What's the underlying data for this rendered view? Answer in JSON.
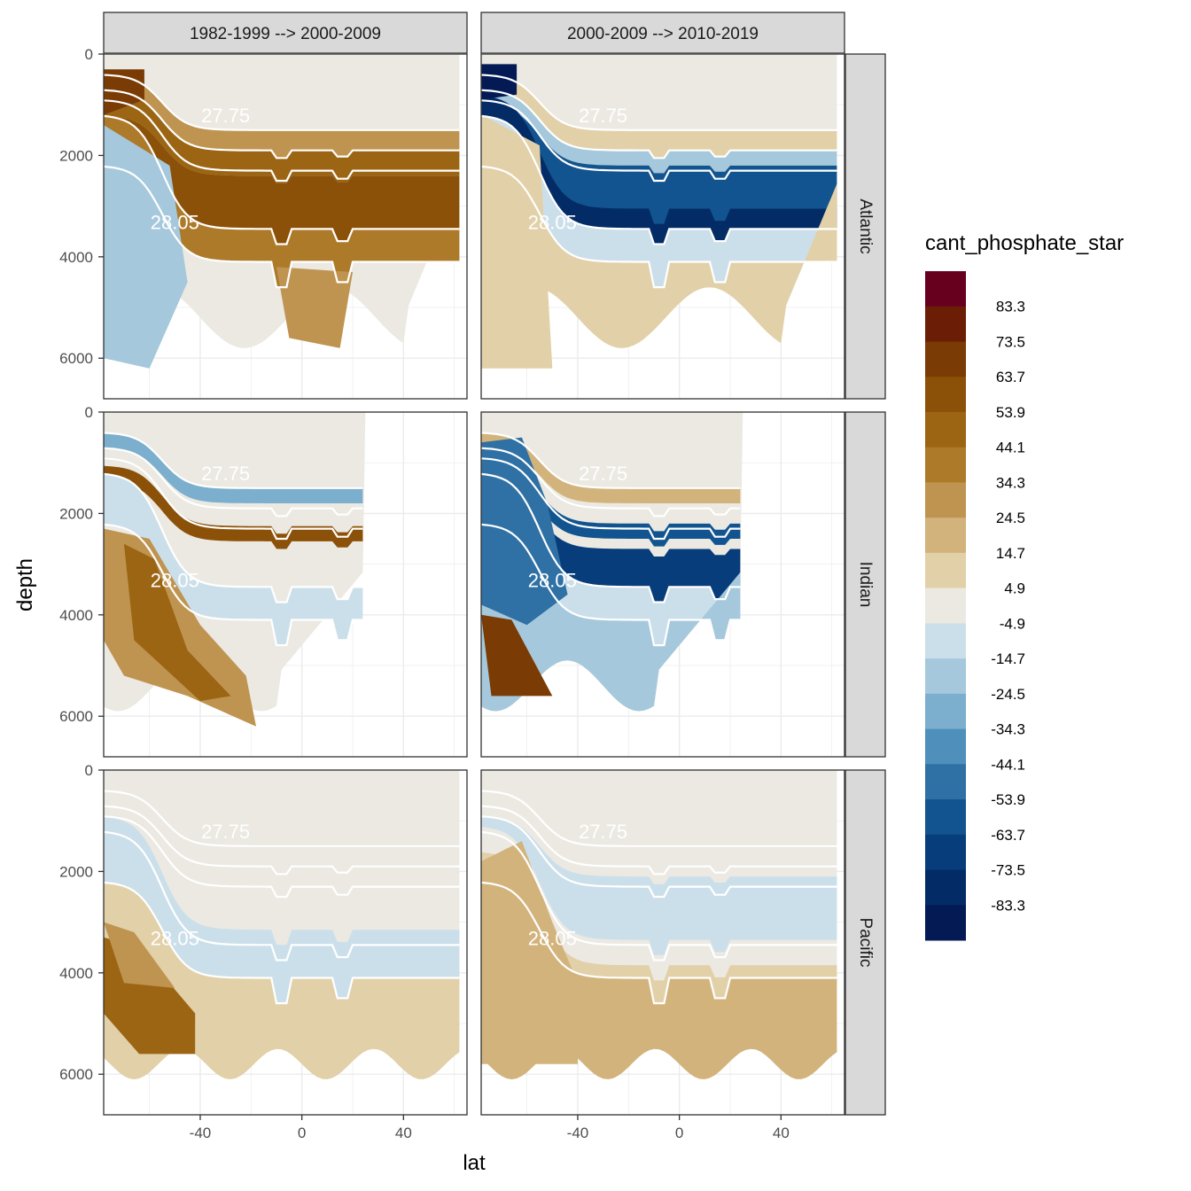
{
  "chart_data": {
    "type": "heatmap",
    "variable": "cant_phosphate_star",
    "xlabel": "lat",
    "ylabel": "depth",
    "x_ticks": [
      -40,
      0,
      40
    ],
    "y_ticks": [
      0,
      2000,
      4000,
      6000
    ],
    "xlim": [
      -78,
      65
    ],
    "ylim": [
      6800,
      0
    ],
    "columns": [
      "1982-1999 --> 2000-2009",
      "2000-2009 --> 2010-2019"
    ],
    "rows": [
      "Atlantic",
      "Indian",
      "Pacific"
    ],
    "legend": {
      "title": "cant_phosphate_star",
      "breaks": [
        "83.3",
        "73.5",
        "63.7",
        "53.9",
        "44.1",
        "34.3",
        "24.5",
        "14.7",
        "4.9",
        "-4.9",
        "-14.7",
        "-24.5",
        "-34.3",
        "-44.1",
        "-53.9",
        "-63.7",
        "-73.5",
        "-83.3"
      ],
      "colors": [
        "#67001f",
        "#6b1d05",
        "#7a3b05",
        "#8c5108",
        "#9b6514",
        "#ad7a2a",
        "#bf9450",
        "#d2b37c",
        "#e2d0a8",
        "#ebe9e2",
        "#cbdfea",
        "#a6c8dc",
        "#7bafcd",
        "#4f8fbc",
        "#2f70a5",
        "#12548f",
        "#073d7a",
        "#032c66",
        "#031a55"
      ]
    },
    "contour_labels": [
      "27.75",
      "28.05"
    ],
    "panels": [
      {
        "row": "Atlantic",
        "column": "1982-1999 --> 2000-2009",
        "dominant_signal": "positive (brown) at mid and deep levels, negative (blue) in southern deep water"
      },
      {
        "row": "Atlantic",
        "column": "2000-2009 --> 2010-2019",
        "dominant_signal": "strong negative (dark blue) at mid depth 2000-3500 m"
      },
      {
        "row": "Indian",
        "column": "1982-1999 --> 2000-2009",
        "dominant_signal": "positive band near 2000 m, positive in southern deep water"
      },
      {
        "row": "Indian",
        "column": "2000-2009 --> 2010-2019",
        "dominant_signal": "negative bands near 2000-3000 m, positive in southern deep water"
      },
      {
        "row": "Pacific",
        "column": "1982-1999 --> 2000-2009",
        "dominant_signal": "weak negative at depth, positive in southern deep water"
      },
      {
        "row": "Pacific",
        "column": "2000-2009 --> 2010-2019",
        "dominant_signal": "weak positive (tan) in deep water"
      }
    ]
  }
}
